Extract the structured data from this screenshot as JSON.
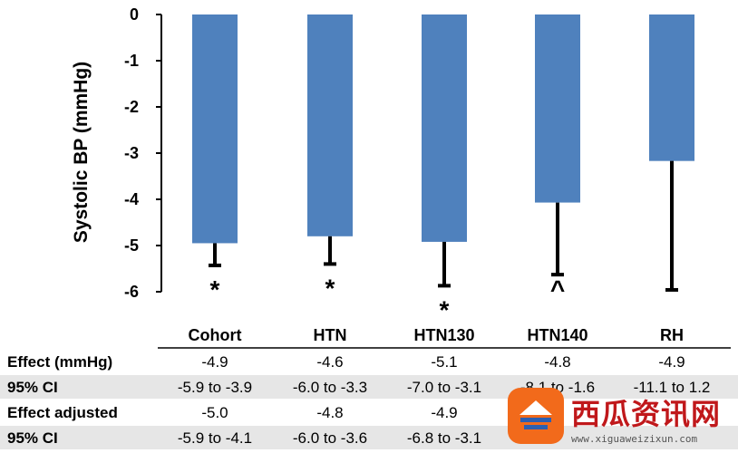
{
  "chart_data": {
    "type": "bar",
    "ylabel": "Systolic BP (mmHg)",
    "ylim": [
      -6,
      0
    ],
    "yticks": [
      "0",
      "-1",
      "-2",
      "-3",
      "-4",
      "-5",
      "-6"
    ],
    "bar_color": "#4f81bd",
    "categories": [
      "Cohort",
      "HTN",
      "HTN130",
      "HTN140",
      "RH"
    ],
    "values": [
      -4.95,
      -4.8,
      -4.92,
      -4.07,
      -3.17
    ],
    "error_lower": [
      -5.43,
      -5.4,
      -5.87,
      -5.63,
      -5.96
    ],
    "significance": [
      "*",
      "*",
      "*",
      "^",
      ""
    ]
  },
  "table": {
    "rows": [
      {
        "label": "Effect (mmHg)",
        "cells": [
          "-4.9",
          "-4.6",
          "-5.1",
          "-4.8",
          "-4.9"
        ],
        "shaded": false
      },
      {
        "label": "95% CI",
        "cells": [
          "-5.9 to -3.9",
          "-6.0 to -3.3",
          "-7.0 to -3.1",
          "-8.1 to -1.6",
          "-11.1 to 1.2"
        ],
        "shaded": true
      },
      {
        "label": "Effect adjusted",
        "cells": [
          "-5.0",
          "-4.8",
          "-4.9",
          "",
          ""
        ],
        "shaded": false
      },
      {
        "label": "95% CI",
        "cells": [
          "-5.9 to -4.1",
          "-6.0 to -3.6",
          "-6.8 to -3.1",
          "",
          ""
        ],
        "shaded": true
      }
    ],
    "shade_color": "#e6e6e6"
  },
  "watermark": {
    "text": "西瓜资讯网",
    "url": "www.xiguaweizixun.com",
    "logo_color": "#f26a1b",
    "text_color": "#c0181b"
  }
}
